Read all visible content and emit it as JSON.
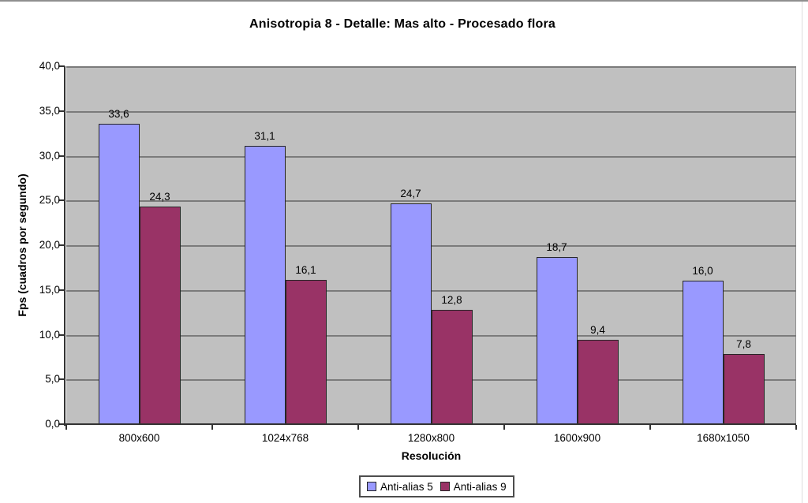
{
  "chart_data": {
    "type": "bar",
    "title": "Anisotropia 8 - Detalle: Mas alto - Procesado flora",
    "xlabel": "Resolución",
    "ylabel": "Fps (cuadros por segundo)",
    "categories": [
      "800x600",
      "1024x768",
      "1280x800",
      "1600x900",
      "1680x1050"
    ],
    "series": [
      {
        "name": "Anti-alias 5",
        "color": "#9999FF",
        "values": [
          33.6,
          31.1,
          24.7,
          18.7,
          16.0
        ],
        "value_labels": [
          "33,6",
          "31,1",
          "24,7",
          "18,7",
          "16,0"
        ]
      },
      {
        "name": "Anti-alias 9",
        "color": "#993366",
        "values": [
          24.3,
          16.1,
          12.8,
          9.4,
          7.8
        ],
        "value_labels": [
          "24,3",
          "16,1",
          "12,8",
          "9,4",
          "7,8"
        ]
      }
    ],
    "ylim": [
      0,
      40
    ],
    "ytick_step": 5,
    "yticks": [
      {
        "value": 0,
        "label": "0,0"
      },
      {
        "value": 5,
        "label": "5,0"
      },
      {
        "value": 10,
        "label": "10,0"
      },
      {
        "value": 15,
        "label": "15,0"
      },
      {
        "value": 20,
        "label": "20,0"
      },
      {
        "value": 25,
        "label": "25,0"
      },
      {
        "value": 30,
        "label": "30,0"
      },
      {
        "value": 35,
        "label": "35,0"
      },
      {
        "value": 40,
        "label": "40,0"
      }
    ],
    "grid": true,
    "legend_position": "bottom",
    "plot_bg_color": "#C0C0C0",
    "gridline_color": "#7B7B7B",
    "axis_color": "#333333"
  }
}
